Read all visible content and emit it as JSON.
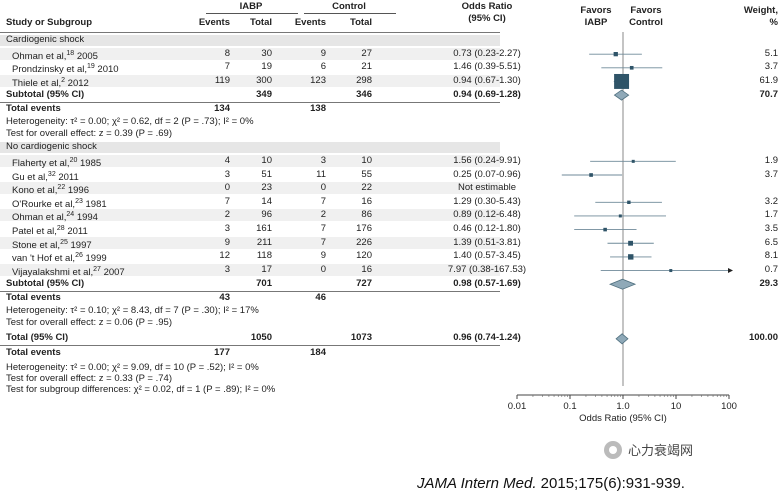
{
  "chart_data": {
    "type": "forest",
    "headers": {
      "study": "Study or Subgroup",
      "iabp": "IABP",
      "control": "Control",
      "events": "Events",
      "total": "Total",
      "or": "Odds Ratio",
      "ci": "(95% CI)",
      "favors1": "Favors",
      "favors_iabp": "IABP",
      "favors2": "Favors",
      "favors_control": "Control",
      "weight": "Weight,",
      "pct": "%"
    },
    "xaxis": {
      "label": "Odds Ratio (95% CI)",
      "ticks": [
        0.01,
        0.1,
        1,
        10,
        100
      ],
      "tick_labels": [
        "0.01",
        "0.1",
        "1.0",
        "10",
        "100"
      ],
      "scale": "log",
      "range": [
        0.01,
        100
      ]
    },
    "groups": [
      {
        "name": "Cardiogenic shock",
        "studies": [
          {
            "name": "Ohman et al,",
            "ref": "18",
            "year": "2005",
            "e1": "8",
            "t1": "30",
            "e2": "9",
            "t2": "27",
            "or_text": "0.73 (0.23-2.27)",
            "or": 0.73,
            "lo": 0.23,
            "hi": 2.27,
            "weight": "5.1",
            "w": 5.1
          },
          {
            "name": "Prondzinsky et al,",
            "ref": "19",
            "year": "2010",
            "e1": "7",
            "t1": "19",
            "e2": "6",
            "t2": "21",
            "or_text": "1.46 (0.39-5.51)",
            "or": 1.46,
            "lo": 0.39,
            "hi": 5.51,
            "weight": "3.7",
            "w": 3.7
          },
          {
            "name": "Thiele et al,",
            "ref": "2",
            "year": "2012",
            "e1": "119",
            "t1": "300",
            "e2": "123",
            "t2": "298",
            "or_text": "0.94 (0.67-1.30)",
            "or": 0.94,
            "lo": 0.67,
            "hi": 1.3,
            "weight": "61.9",
            "w": 61.9
          }
        ],
        "subtotal": {
          "label": "Subtotal (95% CI)",
          "t1": "349",
          "t2": "346",
          "or_text": "0.94 (0.69-1.28)",
          "or": 0.94,
          "lo": 0.69,
          "hi": 1.28,
          "weight": "70.7"
        },
        "total_events": {
          "label": "Total events",
          "e1": "134",
          "e2": "138"
        },
        "heterogeneity": "Heterogeneity: τ² = 0.00; χ² = 0.62, df = 2 (P = .73); I² = 0%",
        "overall": "Test for overall effect: z = 0.39 (P = .69)"
      },
      {
        "name": "No cardiogenic shock",
        "studies": [
          {
            "name": "Flaherty et al,",
            "ref": "20",
            "year": "1985",
            "e1": "4",
            "t1": "10",
            "e2": "3",
            "t2": "10",
            "or_text": "1.56 (0.24-9.91)",
            "or": 1.56,
            "lo": 0.24,
            "hi": 9.91,
            "weight": "1.9",
            "w": 1.9
          },
          {
            "name": "Gu et al,",
            "ref": "32",
            "year": "2011",
            "e1": "3",
            "t1": "51",
            "e2": "11",
            "t2": "55",
            "or_text": "0.25 (0.07-0.96)",
            "or": 0.25,
            "lo": 0.07,
            "hi": 0.96,
            "weight": "3.7",
            "w": 3.7
          },
          {
            "name": "Kono et al,",
            "ref": "22",
            "year": "1996",
            "e1": "0",
            "t1": "23",
            "e2": "0",
            "t2": "22",
            "or_text": "Not estimable",
            "or": null,
            "lo": null,
            "hi": null,
            "weight": "",
            "w": 0
          },
          {
            "name": "O'Rourke et al,",
            "ref": "23",
            "year": "1981",
            "e1": "7",
            "t1": "14",
            "e2": "7",
            "t2": "16",
            "or_text": "1.29 (0.30-5.43)",
            "or": 1.29,
            "lo": 0.3,
            "hi": 5.43,
            "weight": "3.2",
            "w": 3.2
          },
          {
            "name": "Ohman et al,",
            "ref": "24",
            "year": "1994",
            "e1": "2",
            "t1": "96",
            "e2": "2",
            "t2": "86",
            "or_text": "0.89 (0.12-6.48)",
            "or": 0.89,
            "lo": 0.12,
            "hi": 6.48,
            "weight": "1.7",
            "w": 1.7
          },
          {
            "name": "Patel et al,",
            "ref": "28",
            "year": "2011",
            "e1": "3",
            "t1": "161",
            "e2": "7",
            "t2": "176",
            "or_text": "0.46 (0.12-1.80)",
            "or": 0.46,
            "lo": 0.12,
            "hi": 1.8,
            "weight": "3.5",
            "w": 3.5
          },
          {
            "name": "Stone et al,",
            "ref": "25",
            "year": "1997",
            "e1": "9",
            "t1": "211",
            "e2": "7",
            "t2": "226",
            "or_text": "1.39 (0.51-3.81)",
            "or": 1.39,
            "lo": 0.51,
            "hi": 3.81,
            "weight": "6.5",
            "w": 6.5
          },
          {
            "name": "van 't Hof et al,",
            "ref": "26",
            "year": "1999",
            "e1": "12",
            "t1": "118",
            "e2": "9",
            "t2": "120",
            "or_text": "1.40 (0.57-3.45)",
            "or": 1.4,
            "lo": 0.57,
            "hi": 3.45,
            "weight": "8.1",
            "w": 8.1
          },
          {
            "name": "Vijayalakshmi et al,",
            "ref": "27",
            "year": "2007",
            "e1": "3",
            "t1": "17",
            "e2": "0",
            "t2": "16",
            "or_text": "7.97 (0.38-167.53)",
            "or": 7.97,
            "lo": 0.38,
            "hi": 167.53,
            "weight": "0.7",
            "w": 0.7
          }
        ],
        "subtotal": {
          "label": "Subtotal (95% CI)",
          "t1": "701",
          "t2": "727",
          "or_text": "0.98 (0.57-1.69)",
          "or": 0.98,
          "lo": 0.57,
          "hi": 1.69,
          "weight": "29.3"
        },
        "total_events": {
          "label": "Total events",
          "e1": "43",
          "e2": "46"
        },
        "heterogeneity": "Heterogeneity: τ² = 0.10; χ² = 8.43, df = 7 (P = .30); I² = 17%",
        "overall": "Test for overall effect: z = 0.06 (P = .95)"
      }
    ],
    "total": {
      "label": "Total (95% CI)",
      "t1": "1050",
      "t2": "1073",
      "or_text": "0.96 (0.74-1.24)",
      "or": 0.96,
      "lo": 0.74,
      "hi": 1.24,
      "weight": "100.00"
    },
    "total_events": {
      "label": "Total events",
      "e1": "177",
      "e2": "184"
    },
    "footnotes": [
      "Heterogeneity: τ² = 0.00; χ² = 9.09, df = 10 (P = .52); I² = 0%",
      "Test for overall effect: z = 0.33 (P = .74)",
      "Test for subgroup differences: χ² = 0.02, df = 1 (P = .89); I² = 0%"
    ],
    "colors": {
      "square": "#2f5468",
      "diamond": "#8fa9b8",
      "diamond_stroke": "#50707f",
      "line": "#6f8a99"
    }
  },
  "citation": {
    "journal": "JAMA Intern Med.",
    "rest": " 2015;175(6):931-939."
  },
  "watermark": {
    "text": "心力衰竭网"
  }
}
